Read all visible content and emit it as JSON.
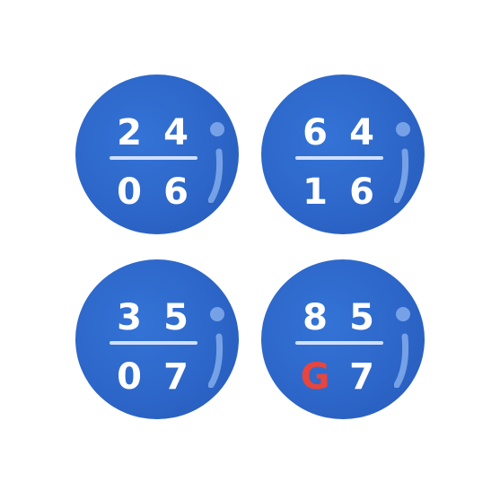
{
  "tiles": [
    {
      "top": [
        "2",
        "4"
      ],
      "bottom": [
        "0",
        "6"
      ]
    },
    {
      "top": [
        "6",
        "4"
      ],
      "bottom": [
        "1",
        "6"
      ]
    },
    {
      "top": [
        "3",
        "5"
      ],
      "bottom": [
        "0",
        "7"
      ]
    },
    {
      "top": [
        "8",
        "5"
      ],
      "bottom": [
        "G",
        "7"
      ]
    }
  ],
  "colors": {
    "tile": "#2c65c7",
    "digit": "#ffffff",
    "divider": "#cfe0ff",
    "highlight_letter": "#e8453c"
  }
}
